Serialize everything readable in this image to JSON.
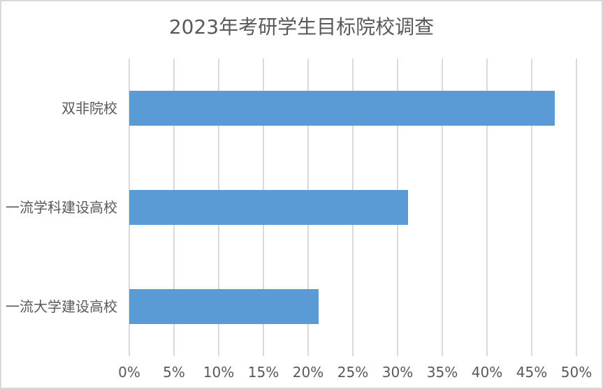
{
  "chart": {
    "title": "2023年考研学生目标院校调查"
  },
  "colors": {
    "bar": "#5b9bd5",
    "gridline": "#d9d9d9",
    "border": "#d9d9d9",
    "text": "#595959",
    "background": "#ffffff"
  },
  "chart_data": {
    "type": "bar",
    "orientation": "horizontal",
    "title": "2023年考研学生目标院校调查",
    "categories": [
      "双非院校",
      "一流学科建设高校",
      "一流大学建设高校"
    ],
    "values": [
      47.6,
      31.2,
      21.2
    ],
    "unit": "%",
    "xlabel": "",
    "ylabel": "",
    "xlim": [
      0,
      50
    ],
    "x_tick_step": 5,
    "x_ticks": [
      "0%",
      "5%",
      "10%",
      "15%",
      "20%",
      "25%",
      "30%",
      "35%",
      "40%",
      "45%",
      "50%"
    ],
    "grid": "vertical-only",
    "legend": "none",
    "data_labels": "none"
  }
}
